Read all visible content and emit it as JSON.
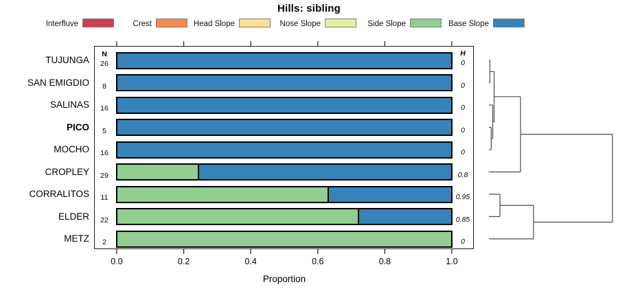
{
  "title": "Hills: sibling",
  "columns": {
    "n": "N",
    "h": "H"
  },
  "legend": {
    "items": [
      {
        "label": "Interfluve",
        "color": "#c94150"
      },
      {
        "label": "Crest",
        "color": "#f58a50"
      },
      {
        "label": "Head Slope",
        "color": "#fcdf92"
      },
      {
        "label": "Nose Slope",
        "color": "#e2f0a2"
      },
      {
        "label": "Side Slope",
        "color": "#91ce90"
      },
      {
        "label": "Base Slope",
        "color": "#3583b9"
      }
    ]
  },
  "chart_data": {
    "type": "bar",
    "orientation": "horizontal",
    "stacked": true,
    "title": "Hills: sibling",
    "xlabel": "Proportion",
    "xlim": [
      0,
      1
    ],
    "xticks": [
      0.0,
      0.2,
      0.4,
      0.6,
      0.8,
      1.0
    ],
    "xtick_labels": [
      "0.0",
      "0.2",
      "0.4",
      "0.6",
      "0.8",
      "1.0"
    ],
    "grid": false,
    "legend_position": "top",
    "categories": [
      "TUJUNGA",
      "SAN EMIGDIO",
      "SALINAS",
      "PICO",
      "MOCHO",
      "CROPLEY",
      "CORRALITOS",
      "ELDER",
      "METZ"
    ],
    "emphasized_category": "PICO",
    "n_values": [
      26,
      8,
      16,
      5,
      16,
      29,
      11,
      22,
      2
    ],
    "h_values": [
      "0",
      "0",
      "0",
      "0",
      "0",
      "0.8",
      "0.95",
      "0.85",
      "0"
    ],
    "series": [
      {
        "name": "Interfluve",
        "color": "#c94150",
        "values": [
          0,
          0,
          0,
          0,
          0,
          0,
          0,
          0,
          0
        ]
      },
      {
        "name": "Crest",
        "color": "#f58a50",
        "values": [
          0,
          0,
          0,
          0,
          0,
          0,
          0,
          0,
          0
        ]
      },
      {
        "name": "Head Slope",
        "color": "#fcdf92",
        "values": [
          0,
          0,
          0,
          0,
          0,
          0,
          0,
          0,
          0
        ]
      },
      {
        "name": "Nose Slope",
        "color": "#e2f0a2",
        "values": [
          0,
          0,
          0,
          0,
          0,
          0,
          0,
          0,
          0
        ]
      },
      {
        "name": "Side Slope",
        "color": "#91ce90",
        "values": [
          0,
          0,
          0,
          0,
          0,
          0.24,
          0.63,
          0.72,
          1.0
        ]
      },
      {
        "name": "Base Slope",
        "color": "#3583b9",
        "values": [
          1.0,
          1.0,
          1.0,
          1.0,
          1.0,
          0.76,
          0.37,
          0.28,
          0
        ]
      }
    ],
    "dendrogram": {
      "note": "right-side cluster tree; height is normalized 0..1 merge distance",
      "merges": [
        {
          "id": "n1",
          "a": "TUJUNGA",
          "b": "SAN EMIGDIO",
          "height": 0.008
        },
        {
          "id": "n2",
          "a": "PICO",
          "b": "MOCHO",
          "height": 0.019
        },
        {
          "id": "n3",
          "a": "SALINAS",
          "b": "n2",
          "height": 0.031
        },
        {
          "id": "n4",
          "a": "n1",
          "b": "n3",
          "height": 0.042
        },
        {
          "id": "n5",
          "a": "n4",
          "b": "CROPLEY",
          "height": 0.256
        },
        {
          "id": "n6",
          "a": "CORRALITOS",
          "b": "ELDER",
          "height": 0.089
        },
        {
          "id": "n7",
          "a": "n6",
          "b": "METZ",
          "height": 0.361
        },
        {
          "id": "n8",
          "a": "n5",
          "b": "n7",
          "height": 1.0
        }
      ]
    }
  }
}
